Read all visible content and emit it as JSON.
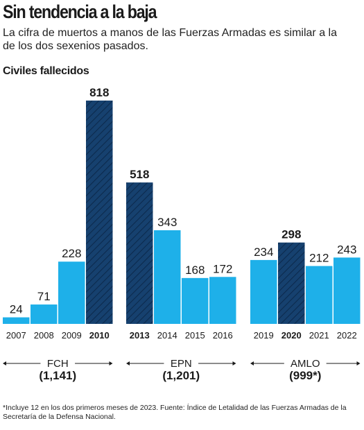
{
  "header": {
    "title": "Sin tendencia a la baja",
    "subtitle": "La cifra de muertos a manos de las Fuerzas Armadas es similar a la de los dos sexenios pasados.",
    "section_label": "Civiles fallecidos"
  },
  "chart_data": {
    "type": "bar",
    "categories": [
      "2007",
      "2008",
      "2009",
      "2010",
      "2013",
      "2014",
      "2015",
      "2016",
      "2019",
      "2020",
      "2021",
      "2022"
    ],
    "values": [
      24,
      71,
      228,
      818,
      518,
      343,
      168,
      172,
      234,
      298,
      212,
      243
    ],
    "value_labels": [
      "24",
      "71",
      "228",
      "818",
      "518",
      "343",
      "168",
      "172",
      "234",
      "298",
      "212",
      "243"
    ],
    "highlighted": [
      false,
      false,
      false,
      true,
      true,
      false,
      false,
      false,
      false,
      true,
      false,
      false
    ],
    "groups": [
      {
        "name": "FCH",
        "total": "(1,141)",
        "categories": [
          "2007",
          "2008",
          "2009",
          "2010"
        ]
      },
      {
        "name": "EPN",
        "total": "(1,201)",
        "categories": [
          "2013",
          "2014",
          "2015",
          "2016"
        ]
      },
      {
        "name": "AMLO",
        "total": "(999*)",
        "categories": [
          "2019",
          "2020",
          "2021",
          "2022"
        ]
      }
    ],
    "ylim": [
      0,
      818
    ],
    "grid": false,
    "colors": {
      "normal": "#1eb0e9",
      "highlight": "#16416f",
      "hatch": "#0c2a4d"
    }
  },
  "footer": {
    "note": "*Incluye 12 en los dos primeros meses de 2023. Fuente: Índice de Letalidad de las Fuerzas Armadas de la Secretaría de la Defensa Nacional."
  }
}
